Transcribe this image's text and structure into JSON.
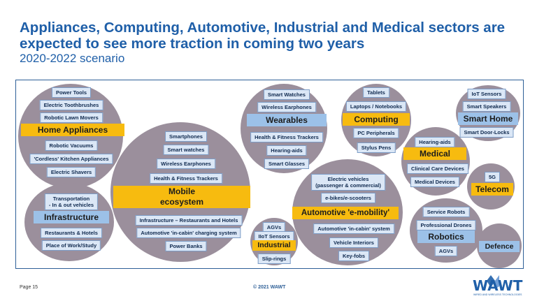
{
  "title": "Appliances, Computing, Automotive, Industrial and Medical sectors are\nexpected to see more traction in coming two years",
  "subtitle": "2020-2022 scenario",
  "sectors": {
    "home_appliances": {
      "label": "Home Appliances",
      "items": [
        "Power Tools",
        "Electric Toothbrushes",
        "Robotic Lawn Movers",
        "Robotic Vacuums",
        "'Cordless' Kitchen Appliances",
        "Electric Shavers"
      ]
    },
    "infrastructure": {
      "label": "Infrastructure",
      "items": [
        "Transportation\n- In & out vehicles",
        "Restaurants & Hotels",
        "Place of Work/Study"
      ]
    },
    "mobile": {
      "label": "Mobile\necosystem",
      "items": [
        "Smartphones",
        "Smart watches",
        "Wireless Earphones",
        "Health & Fitness Trackers",
        "Infrastructure – Restaurants and Hotels",
        "Automotive 'in-cabin' charging system",
        "Power Banks"
      ]
    },
    "wearables": {
      "label": "Wearables",
      "items": [
        "Smart Watches",
        "Wireless Earphones",
        "Health & Fitness Trackers",
        "Hearing-aids",
        "Smart Glasses"
      ]
    },
    "industrial": {
      "label": "Industrial",
      "items": [
        "AGVs",
        "IIoT Sensors",
        "Slip-rings"
      ]
    },
    "computing": {
      "label": "Computing",
      "items": [
        "Tablets",
        "Laptops / Notebooks",
        "PC Peripherals",
        "Stylus Pens"
      ]
    },
    "automotive": {
      "label": "Automotive 'e-mobility'",
      "items": [
        "Electric vehicles\n(passenger & commercial)",
        "e-bikes/e-scooters",
        "Automotive 'in-cabin' system",
        "Vehicle Interiors",
        "Key-fobs"
      ]
    },
    "medical": {
      "label": "Medical",
      "items": [
        "Hearing-aids",
        "Clinical Care Devices",
        "Medical Devices"
      ]
    },
    "smart_home": {
      "label": "Smart Home",
      "items": [
        "IoT Sensors",
        "Smart Speakers",
        "Smart Door-Locks"
      ]
    },
    "telecom": {
      "label": "Telecom",
      "items": [
        "5G"
      ]
    },
    "robotics": {
      "label": "Robotics",
      "items": [
        "Service Robots",
        "Professional Drones",
        "AGVs"
      ]
    },
    "defence": {
      "label": "Defence"
    }
  },
  "footer": {
    "page": "Page 15",
    "copyright": "© 2021 WAWT"
  },
  "logo": {
    "text": "WAWT",
    "tagline": "WIRED AND WIRELESS TECHNOLOGIES"
  },
  "colors": {
    "title": "#1f5fa8",
    "circle": "#9b8f9c",
    "yellow_header": "#f7bb0f",
    "blue_header": "#9cc1e8",
    "item_box": "#dbe7f6"
  }
}
